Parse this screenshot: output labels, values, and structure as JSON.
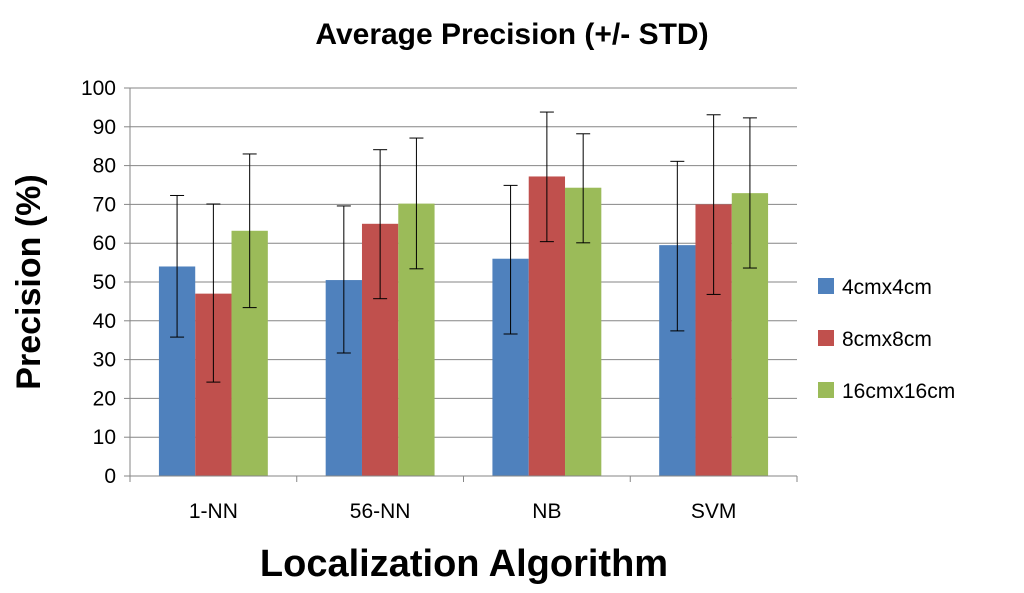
{
  "chart_data": {
    "type": "bar",
    "title": "Average Precision (+/- STD)",
    "xlabel": "Localization Algorithm",
    "ylabel": "Precision (%)",
    "categories": [
      "1-NN",
      "56-NN",
      "NB",
      "SVM"
    ],
    "ylim": [
      0,
      100
    ],
    "yticks": [
      "0",
      "10",
      "20",
      "30",
      "40",
      "50",
      "60",
      "70",
      "80",
      "90",
      "100"
    ],
    "grid": true,
    "legend_position": "right",
    "error_bars": true,
    "series": [
      {
        "name": "4cmx4cm",
        "color": "#4f81bd",
        "values": [
          54,
          50.5,
          56,
          59.5
        ],
        "error_low": [
          35.8,
          31.7,
          36.6,
          37.4
        ],
        "error_high": [
          72.3,
          69.6,
          74.9,
          81.1
        ]
      },
      {
        "name": "8cmx8cm",
        "color": "#c0504d",
        "values": [
          47,
          65,
          77.2,
          70
        ],
        "error_low": [
          24.2,
          45.7,
          60.4,
          46.8
        ],
        "error_high": [
          70.1,
          84.1,
          93.8,
          93.1
        ]
      },
      {
        "name": "16cmx16cm",
        "color": "#9bbb59",
        "values": [
          63.2,
          70.2,
          74.3,
          72.9
        ],
        "error_low": [
          43.4,
          53.4,
          60.1,
          53.6
        ],
        "error_high": [
          83,
          87.1,
          88.2,
          92.3
        ]
      }
    ]
  }
}
